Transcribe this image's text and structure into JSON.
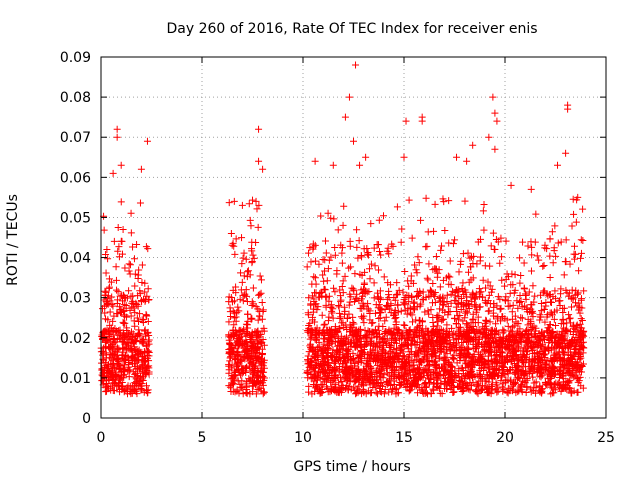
{
  "chart_data": {
    "type": "scatter",
    "title": "Day 260 of 2016, Rate Of TEC Index for receiver enis",
    "xlabel": "GPS time / hours",
    "ylabel": "ROTI / TECUs",
    "xlim": [
      0,
      25
    ],
    "ylim": [
      0,
      0.09
    ],
    "x_ticks": [
      0,
      5,
      10,
      15,
      20,
      25
    ],
    "x_tick_labels": [
      "0",
      "5",
      "10",
      "15",
      "20",
      "25"
    ],
    "y_ticks": [
      0,
      0.01,
      0.02,
      0.03,
      0.04,
      0.05,
      0.06,
      0.07,
      0.08,
      0.09
    ],
    "y_tick_labels": [
      "0",
      "0.01",
      "0.02",
      "0.03",
      "0.04",
      "0.05",
      "0.06",
      "0.07",
      "0.08",
      "0.09"
    ],
    "grid": true,
    "marker": "+",
    "color": "#ff0000",
    "observation_windows_hours": [
      [
        0.0,
        2.4
      ],
      [
        6.3,
        8.1
      ],
      [
        10.2,
        23.9
      ]
    ],
    "series": [
      {
        "name": "ROTI",
        "highlight_points": [
          {
            "x": 0.8,
            "y": 0.072
          },
          {
            "x": 0.8,
            "y": 0.07
          },
          {
            "x": 1.0,
            "y": 0.063
          },
          {
            "x": 0.6,
            "y": 0.061
          },
          {
            "x": 2.3,
            "y": 0.069
          },
          {
            "x": 2.0,
            "y": 0.062
          },
          {
            "x": 7.8,
            "y": 0.072
          },
          {
            "x": 7.8,
            "y": 0.064
          },
          {
            "x": 8.0,
            "y": 0.062
          },
          {
            "x": 6.6,
            "y": 0.054
          },
          {
            "x": 7.0,
            "y": 0.053
          },
          {
            "x": 10.6,
            "y": 0.064
          },
          {
            "x": 11.5,
            "y": 0.063
          },
          {
            "x": 12.1,
            "y": 0.075
          },
          {
            "x": 12.3,
            "y": 0.08
          },
          {
            "x": 12.6,
            "y": 0.088
          },
          {
            "x": 12.5,
            "y": 0.069
          },
          {
            "x": 13.1,
            "y": 0.065
          },
          {
            "x": 12.8,
            "y": 0.063
          },
          {
            "x": 15.1,
            "y": 0.074
          },
          {
            "x": 15.0,
            "y": 0.065
          },
          {
            "x": 15.9,
            "y": 0.075
          },
          {
            "x": 15.9,
            "y": 0.074
          },
          {
            "x": 17.6,
            "y": 0.065
          },
          {
            "x": 18.1,
            "y": 0.064
          },
          {
            "x": 18.4,
            "y": 0.068
          },
          {
            "x": 19.2,
            "y": 0.07
          },
          {
            "x": 19.4,
            "y": 0.08
          },
          {
            "x": 19.5,
            "y": 0.076
          },
          {
            "x": 19.6,
            "y": 0.074
          },
          {
            "x": 19.5,
            "y": 0.067
          },
          {
            "x": 20.3,
            "y": 0.058
          },
          {
            "x": 21.3,
            "y": 0.057
          },
          {
            "x": 22.6,
            "y": 0.063
          },
          {
            "x": 23.1,
            "y": 0.078
          },
          {
            "x": 23.1,
            "y": 0.077
          },
          {
            "x": 23.0,
            "y": 0.066
          },
          {
            "x": 23.6,
            "y": 0.055
          }
        ]
      }
    ]
  }
}
